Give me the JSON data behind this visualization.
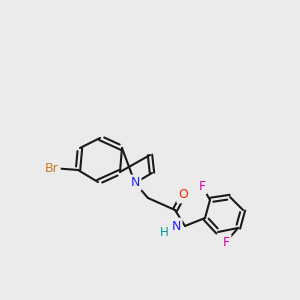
{
  "background_color": "#ebebeb",
  "bond_color": "#1a1a1a",
  "atom_colors": {
    "Br": "#cc7722",
    "N_indole": "#2222ff",
    "N_amide": "#2222ff",
    "O": "#ff2200",
    "F": "#dd00aa",
    "H": "#009999"
  },
  "figsize": [
    3.0,
    3.0
  ],
  "dpi": 100,
  "lw": 1.5,
  "sep": 2.2
}
